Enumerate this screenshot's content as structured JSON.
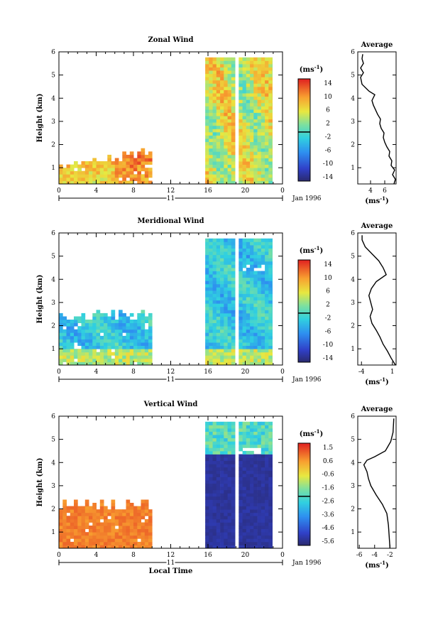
{
  "chart_data": [
    {
      "type": "heatmap",
      "title": "Zonal Wind",
      "ylabel": "Height (km)",
      "xlabel": "",
      "xlim": [
        0,
        24
      ],
      "ylim": [
        0.3,
        6
      ],
      "xticks": [
        "0",
        "4",
        "8",
        "12",
        "16",
        "20",
        "0"
      ],
      "yticks": [
        "1",
        "2",
        "3",
        "4",
        "5",
        "6"
      ],
      "day_label": "11",
      "date_label": "Jan 1996",
      "colorbar": {
        "unit": "(ms⁻¹)",
        "ticks": [
          "14",
          "10",
          "6",
          "2",
          "-2",
          "-6",
          "-10",
          "-14"
        ],
        "range": [
          -16,
          16
        ]
      },
      "profile": {
        "title": "Average",
        "xlabel": "(ms⁻¹)",
        "xticks": [
          "4",
          "6"
        ],
        "xlim": [
          2.2,
          7.6
        ],
        "yticks": [
          "1",
          "2",
          "3",
          "4",
          "5",
          "6"
        ],
        "ylim": [
          0.3,
          6
        ],
        "points": [
          [
            7.3,
            0.3
          ],
          [
            7.5,
            0.5
          ],
          [
            7.1,
            0.7
          ],
          [
            7.4,
            0.9
          ],
          [
            6.9,
            1.1
          ],
          [
            7.0,
            1.3
          ],
          [
            6.6,
            1.5
          ],
          [
            6.7,
            1.7
          ],
          [
            6.3,
            1.9
          ],
          [
            6.0,
            2.1
          ],
          [
            5.8,
            2.3
          ],
          [
            5.9,
            2.5
          ],
          [
            5.5,
            2.7
          ],
          [
            5.3,
            2.9
          ],
          [
            5.4,
            3.1
          ],
          [
            5.0,
            3.3
          ],
          [
            4.7,
            3.5
          ],
          [
            4.4,
            3.7
          ],
          [
            4.2,
            3.9
          ],
          [
            4.6,
            4.15
          ],
          [
            3.8,
            4.3
          ],
          [
            2.8,
            4.6
          ],
          [
            2.6,
            4.9
          ],
          [
            3.0,
            5.1
          ],
          [
            2.6,
            5.3
          ],
          [
            3.0,
            5.5
          ],
          [
            2.8,
            5.7
          ],
          [
            2.9,
            5.9
          ]
        ]
      },
      "coverage": [
        {
          "t": [
            0.0,
            10.0
          ],
          "h": [
            0.3,
            1.6
          ]
        },
        {
          "t": [
            15.7,
            22.9
          ],
          "h": [
            0.3,
            5.7
          ]
        }
      ],
      "regime": "zonal"
    },
    {
      "type": "heatmap",
      "title": "Meridional Wind",
      "ylabel": "Height (km)",
      "xlabel": "",
      "xlim": [
        0,
        24
      ],
      "ylim": [
        0.3,
        6
      ],
      "xticks": [
        "0",
        "4",
        "8",
        "12",
        "16",
        "20",
        "0"
      ],
      "yticks": [
        "1",
        "2",
        "3",
        "4",
        "5",
        "6"
      ],
      "day_label": "11",
      "date_label": "Jan 1996",
      "colorbar": {
        "unit": "(ms⁻¹)",
        "ticks": [
          "14",
          "10",
          "6",
          "2",
          "-2",
          "-6",
          "-10",
          "-14"
        ],
        "range": [
          -16,
          16
        ]
      },
      "profile": {
        "title": "Average",
        "xlabel": "(ms⁻¹)",
        "xticks": [
          "-4",
          "1"
        ],
        "xlim": [
          -4.6,
          1.6
        ],
        "yticks": [
          "1",
          "2",
          "3",
          "4",
          "5",
          "6"
        ],
        "ylim": [
          0.3,
          6
        ],
        "points": [
          [
            1.5,
            0.3
          ],
          [
            0.8,
            0.6
          ],
          [
            0.2,
            0.9
          ],
          [
            -0.5,
            1.2
          ],
          [
            -1.0,
            1.5
          ],
          [
            -1.6,
            1.8
          ],
          [
            -2.3,
            2.1
          ],
          [
            -2.6,
            2.4
          ],
          [
            -2.2,
            2.7
          ],
          [
            -2.5,
            3.0
          ],
          [
            -2.8,
            3.3
          ],
          [
            -2.4,
            3.6
          ],
          [
            -1.6,
            3.9
          ],
          [
            0.0,
            4.2
          ],
          [
            -0.5,
            4.5
          ],
          [
            -1.2,
            4.8
          ],
          [
            -2.3,
            5.1
          ],
          [
            -3.4,
            5.4
          ],
          [
            -3.9,
            5.7
          ],
          [
            -3.9,
            5.9
          ]
        ]
      },
      "coverage": [
        {
          "t": [
            0.0,
            10.0
          ],
          "h": [
            0.3,
            2.4
          ]
        },
        {
          "t": [
            15.7,
            22.9
          ],
          "h": [
            0.3,
            5.7
          ]
        }
      ],
      "regime": "meridional"
    },
    {
      "type": "heatmap",
      "title": "Vertical Wind",
      "ylabel": "Height (km)",
      "xlabel": "Local Time",
      "xlim": [
        0,
        24
      ],
      "ylim": [
        0.3,
        6
      ],
      "xticks": [
        "0",
        "4",
        "8",
        "12",
        "16",
        "20",
        "0"
      ],
      "yticks": [
        "1",
        "2",
        "3",
        "4",
        "5",
        "6"
      ],
      "day_label": "11",
      "date_label": "Jan 1996",
      "colorbar": {
        "unit": "(ms⁻¹)",
        "ticks": [
          "1.5",
          "0.6",
          "-0.6",
          "-1.6",
          "-2.6",
          "-3.6",
          "-4.6",
          "-5.6"
        ],
        "range": [
          -6.1,
          2.0
        ]
      },
      "profile": {
        "title": "Average",
        "xlabel": "(ms⁻¹)",
        "xticks": [
          "-6",
          "-4",
          "-2"
        ],
        "xlim": [
          -6.2,
          -1.2
        ],
        "yticks": [
          "1",
          "2",
          "3",
          "4",
          "5",
          "6"
        ],
        "ylim": [
          0.3,
          6
        ],
        "points": [
          [
            -2.0,
            0.3
          ],
          [
            -2.1,
            0.8
          ],
          [
            -2.2,
            1.3
          ],
          [
            -2.4,
            1.8
          ],
          [
            -3.0,
            2.2
          ],
          [
            -3.8,
            2.6
          ],
          [
            -4.5,
            3.0
          ],
          [
            -4.8,
            3.3
          ],
          [
            -5.0,
            3.6
          ],
          [
            -5.4,
            3.9
          ],
          [
            -5.0,
            4.1
          ],
          [
            -4.0,
            4.25
          ],
          [
            -2.6,
            4.5
          ],
          [
            -1.9,
            4.9
          ],
          [
            -1.6,
            5.3
          ],
          [
            -1.5,
            5.9
          ]
        ]
      },
      "coverage": [
        {
          "t": [
            0.0,
            10.0
          ],
          "h": [
            0.3,
            2.1
          ]
        },
        {
          "t": [
            15.7,
            22.9
          ],
          "h": [
            0.3,
            5.7
          ]
        }
      ],
      "regime": "vertical"
    }
  ]
}
